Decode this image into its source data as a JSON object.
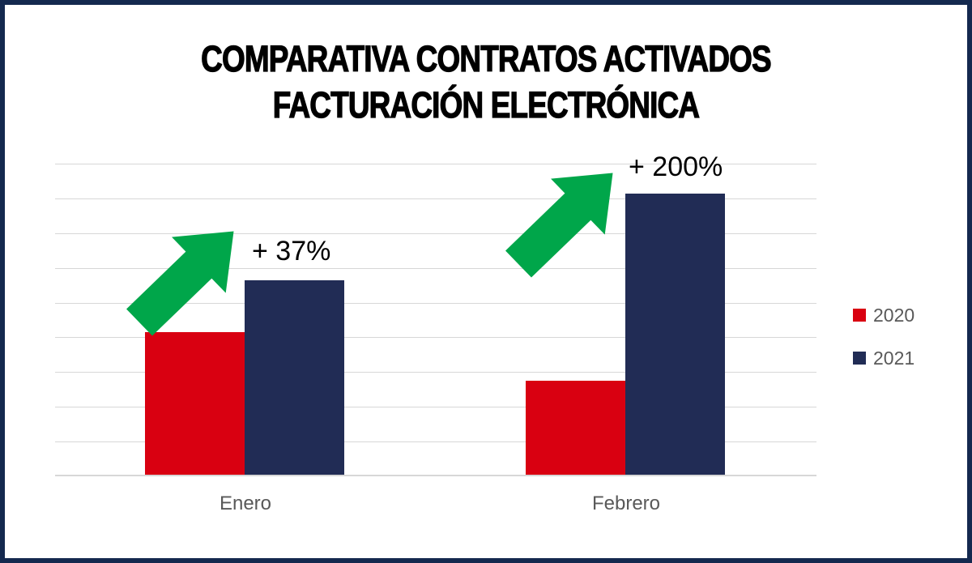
{
  "title": {
    "line1": "COMPARATIVA CONTRATOS ACTIVADOS",
    "line2": "FACTURACIÓN ELECTRÓNICA",
    "color": "#000000"
  },
  "chart_data": {
    "type": "bar",
    "title": "COMPARATIVA CONTRATOS ACTIVADOS FACTURACIÓN ELECTRÓNICA",
    "categories": [
      "Enero",
      "Febrero"
    ],
    "series": [
      {
        "name": "2020",
        "color": "#D90011",
        "values": [
          41,
          27
        ]
      },
      {
        "name": "2021",
        "color": "#212C55",
        "values": [
          56,
          81
        ]
      }
    ],
    "annotations": [
      {
        "category": "Enero",
        "label": "+ 37%",
        "growth_pct": 37,
        "arrow": "up-right"
      },
      {
        "category": "Febrero",
        "label": "+ 200%",
        "growth_pct": 200,
        "arrow": "up-right"
      }
    ],
    "arrow_color": "#00A64A",
    "xlabel": "",
    "ylabel": "",
    "ylim": [
      0,
      90
    ],
    "gridline_step": 10,
    "grid": true,
    "y_axis_labels_visible": false,
    "legend_position": "right",
    "gridline_color": "#D7D7D7",
    "axis_label_color": "#595959",
    "frame_border_color": "#14294F",
    "background_color": "#FFFFFF"
  }
}
